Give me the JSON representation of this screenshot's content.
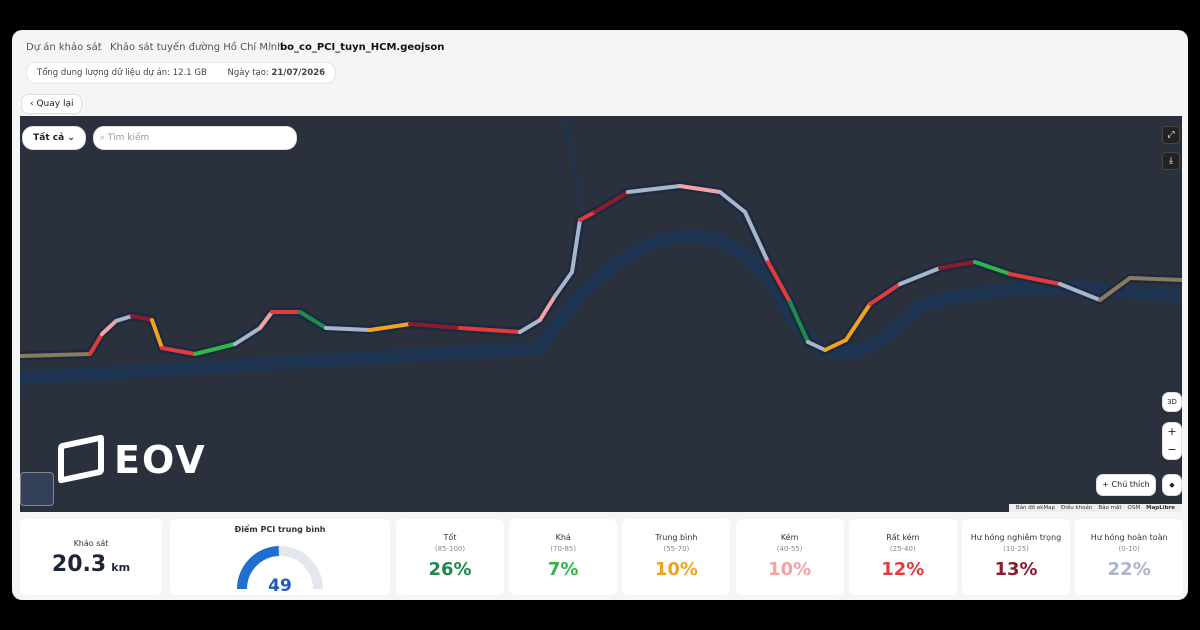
{
  "breadcrumb": [
    "Dự án khảo sát",
    "Khảo sát tuyến đường Hồ Chí Minh",
    "bo_co_PCI_tuyn_HCM.geojson"
  ],
  "info": {
    "storage": "Tổng dung lượng dữ liệu dự án: 12.1 GB",
    "created_label": "Ngày tạo:",
    "created_date": "21/07/2026"
  },
  "back": "Quay lại",
  "map": {
    "filter": "Tất cả",
    "search_placeholder": "Tìm kiếm",
    "logo": "EOV",
    "btn_3d": "3D",
    "legend_btn": "Chú thích",
    "attribution": [
      "Bản đồ ekMap",
      "Điều khoản",
      "Bảo mật",
      "OSM",
      "MapLibre"
    ]
  },
  "survey": {
    "label": "Khảo sát",
    "value": "20.3",
    "unit": "km"
  },
  "pci": {
    "label": "Điểm PCI trung bình",
    "value": "49"
  },
  "classes": [
    {
      "name": "Tốt",
      "range": "(85-100)",
      "percent": "26%",
      "color": "#1e8a4c"
    },
    {
      "name": "Khá",
      "range": "(70-85)",
      "percent": "7%",
      "color": "#2eb84a"
    },
    {
      "name": "Trung bình",
      "range": "(55-70)",
      "percent": "10%",
      "color": "#f2a31b"
    },
    {
      "name": "Kém",
      "range": "(40-55)",
      "percent": "10%",
      "color": "#f3a3a3"
    },
    {
      "name": "Rất kém",
      "range": "(25-40)",
      "percent": "12%",
      "color": "#e23b3b"
    },
    {
      "name": "Hư hỏng nghiêm trọng",
      "range": "(10-25)",
      "percent": "13%",
      "color": "#8c1c2c"
    },
    {
      "name": "Hư hỏng hoàn toàn",
      "range": "(0-10)",
      "percent": "22%",
      "color": "#a9b5c9"
    }
  ]
}
